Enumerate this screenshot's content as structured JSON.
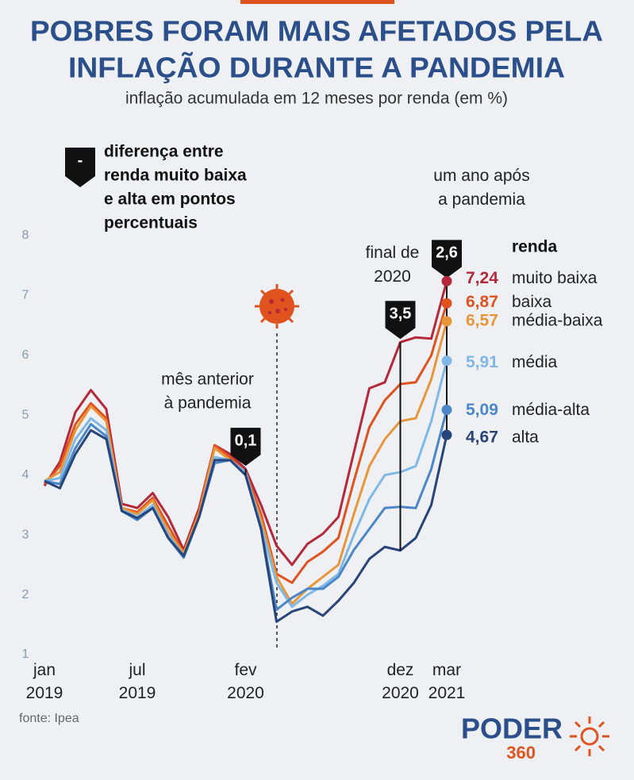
{
  "chart_data": {
    "type": "line",
    "title": [
      "POBRES FORAM MAIS AFETADOS PELA",
      "INFLAÇÃO DURANTE A PANDEMIA"
    ],
    "subtitle": "inflação acumulada em 12 meses por renda (em %)",
    "note": [
      "diferença entre",
      "renda muito baixa",
      "e alta em pontos",
      "percentuais"
    ],
    "note_icon": "-",
    "categories": [
      "jan 2019",
      null,
      null,
      null,
      null,
      null,
      "jul 2019",
      null,
      null,
      null,
      null,
      null,
      null,
      "fev 2020",
      null,
      null,
      null,
      null,
      null,
      null,
      null,
      null,
      null,
      "dez 2020",
      null,
      null,
      "mar 2021"
    ],
    "ylim": [
      1,
      8
    ],
    "yticks": [
      1,
      2,
      3,
      4,
      5,
      6,
      7,
      8
    ],
    "legend_title": "renda",
    "series": [
      {
        "name": "muito baixa",
        "color": "#b5283a",
        "values": [
          3.82,
          4.22,
          5.05,
          5.42,
          5.1,
          3.52,
          3.45,
          3.7,
          3.3,
          2.75,
          3.45,
          4.5,
          4.35,
          4.1,
          3.5,
          2.82,
          2.5,
          2.85,
          3.02,
          3.3,
          4.38,
          5.45,
          5.55,
          6.22,
          6.3,
          6.28,
          7.24
        ],
        "value_labels": [
          null,
          null,
          null,
          null,
          null,
          null,
          null,
          null,
          null,
          null,
          null,
          null,
          null,
          null,
          null,
          null,
          null,
          null,
          null,
          null,
          null,
          null,
          null,
          null,
          null,
          null,
          "7,24"
        ]
      },
      {
        "name": "baixa",
        "color": "#e0531f",
        "values": [
          3.85,
          4.15,
          4.85,
          5.2,
          4.95,
          3.45,
          3.38,
          3.62,
          3.15,
          2.7,
          3.4,
          4.5,
          4.3,
          4.05,
          3.35,
          2.35,
          2.2,
          2.55,
          2.72,
          2.95,
          3.9,
          4.8,
          5.25,
          5.52,
          5.55,
          6.0,
          6.87
        ],
        "value_labels": [
          null,
          null,
          null,
          null,
          null,
          null,
          null,
          null,
          null,
          null,
          null,
          null,
          null,
          null,
          null,
          null,
          null,
          null,
          null,
          null,
          null,
          null,
          null,
          null,
          null,
          null,
          "6,87"
        ]
      },
      {
        "name": "média-baixa",
        "color": "#e8963a",
        "values": [
          3.9,
          4.05,
          4.75,
          5.15,
          4.9,
          3.45,
          3.35,
          3.58,
          3.05,
          2.7,
          3.35,
          4.45,
          4.25,
          4.0,
          3.25,
          2.3,
          1.85,
          2.1,
          2.3,
          2.5,
          3.35,
          4.15,
          4.6,
          4.9,
          4.95,
          5.6,
          6.57
        ],
        "value_labels": [
          null,
          null,
          null,
          null,
          null,
          null,
          null,
          null,
          null,
          null,
          null,
          null,
          null,
          null,
          null,
          null,
          null,
          null,
          null,
          null,
          null,
          null,
          null,
          null,
          null,
          null,
          "6,57"
        ]
      },
      {
        "name": "média",
        "color": "#7fb8e6",
        "values": [
          3.9,
          3.95,
          4.6,
          4.95,
          4.75,
          3.42,
          3.3,
          3.5,
          3.0,
          2.65,
          3.3,
          4.3,
          4.25,
          4.05,
          3.15,
          2.2,
          1.8,
          2.0,
          2.15,
          2.35,
          3.0,
          3.6,
          4.0,
          4.05,
          4.15,
          4.9,
          5.91
        ],
        "value_labels": [
          null,
          null,
          null,
          null,
          null,
          null,
          null,
          null,
          null,
          null,
          null,
          null,
          null,
          null,
          null,
          null,
          null,
          null,
          null,
          null,
          null,
          null,
          null,
          null,
          null,
          null,
          "5,91"
        ]
      },
      {
        "name": "média-alta",
        "color": "#4a86c8",
        "values": [
          3.9,
          3.85,
          4.45,
          4.85,
          4.65,
          3.4,
          3.25,
          3.45,
          2.95,
          2.62,
          3.3,
          4.2,
          4.25,
          4.0,
          3.1,
          1.75,
          1.95,
          2.1,
          2.1,
          2.3,
          2.75,
          3.1,
          3.45,
          3.47,
          3.45,
          4.1,
          5.09
        ],
        "value_labels": [
          null,
          null,
          null,
          null,
          null,
          null,
          null,
          null,
          null,
          null,
          null,
          null,
          null,
          null,
          null,
          null,
          null,
          null,
          null,
          null,
          null,
          null,
          null,
          null,
          null,
          null,
          "5,09"
        ]
      },
      {
        "name": "alta",
        "color": "#27457a",
        "values": [
          3.9,
          3.78,
          4.35,
          4.75,
          4.6,
          3.4,
          3.28,
          3.45,
          2.95,
          2.65,
          3.3,
          4.25,
          4.25,
          4.0,
          3.1,
          1.55,
          1.72,
          1.8,
          1.65,
          1.9,
          2.2,
          2.6,
          2.8,
          2.74,
          2.95,
          3.5,
          4.67
        ],
        "value_labels": [
          null,
          null,
          null,
          null,
          null,
          null,
          null,
          null,
          null,
          null,
          null,
          null,
          null,
          null,
          null,
          null,
          null,
          null,
          null,
          null,
          null,
          null,
          null,
          null,
          null,
          null,
          "4,67"
        ]
      }
    ],
    "annotations": [
      {
        "at": "fev 2020",
        "value": 0.1,
        "label": "0,1",
        "text": [
          "mês anterior",
          "à pandemia"
        ]
      },
      {
        "at": "dez 2020",
        "value": 3.5,
        "label": "3,5",
        "text": [
          "final de",
          "2020"
        ]
      },
      {
        "at": "mar 2021",
        "value": 2.6,
        "label": "2,6",
        "text": [
          "um ano após",
          "a pandemia"
        ]
      }
    ],
    "source": "fonte: Ipea",
    "logo": [
      "PODER",
      "360"
    ]
  }
}
